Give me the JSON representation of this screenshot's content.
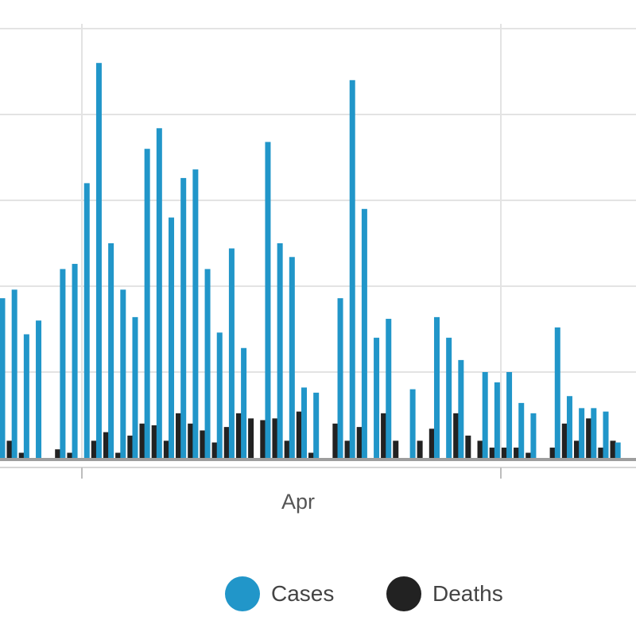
{
  "chart_data": {
    "type": "bar",
    "x_tick_labels": [
      "Apr"
    ],
    "colors": {
      "cases": "#2196c9",
      "deaths": "#222222",
      "grid": "#e3e3e3",
      "axis": "#9e9e9e"
    },
    "grid": true,
    "legend_position": "bottom-center",
    "ylim": [
      0,
      250
    ],
    "series": [
      {
        "name": "Cases",
        "values": [
          93,
          98,
          72,
          80,
          0,
          110,
          113,
          160,
          230,
          125,
          98,
          82,
          180,
          192,
          140,
          163,
          168,
          110,
          73,
          122,
          64,
          0,
          184,
          125,
          117,
          41,
          38,
          0,
          93,
          220,
          145,
          70,
          81,
          0,
          40,
          0,
          82,
          70,
          57,
          0,
          50,
          44,
          50,
          32,
          26,
          0,
          76,
          36,
          29,
          29,
          27,
          9
        ]
      },
      {
        "name": "Deaths",
        "values": [
          10,
          3,
          0,
          0,
          5,
          3,
          0,
          10,
          15,
          3,
          13,
          20,
          19,
          10,
          26,
          20,
          16,
          9,
          18,
          26,
          23,
          22,
          23,
          10,
          27,
          3,
          0,
          20,
          10,
          18,
          0,
          26,
          10,
          0,
          10,
          17,
          0,
          26,
          13,
          10,
          6,
          6,
          6,
          3,
          0,
          6,
          20,
          10,
          23,
          6,
          10,
          0
        ]
      }
    ]
  },
  "legend": {
    "items": [
      {
        "label": "Cases",
        "color": "#2196c9"
      },
      {
        "label": "Deaths",
        "color": "#222222"
      }
    ]
  }
}
